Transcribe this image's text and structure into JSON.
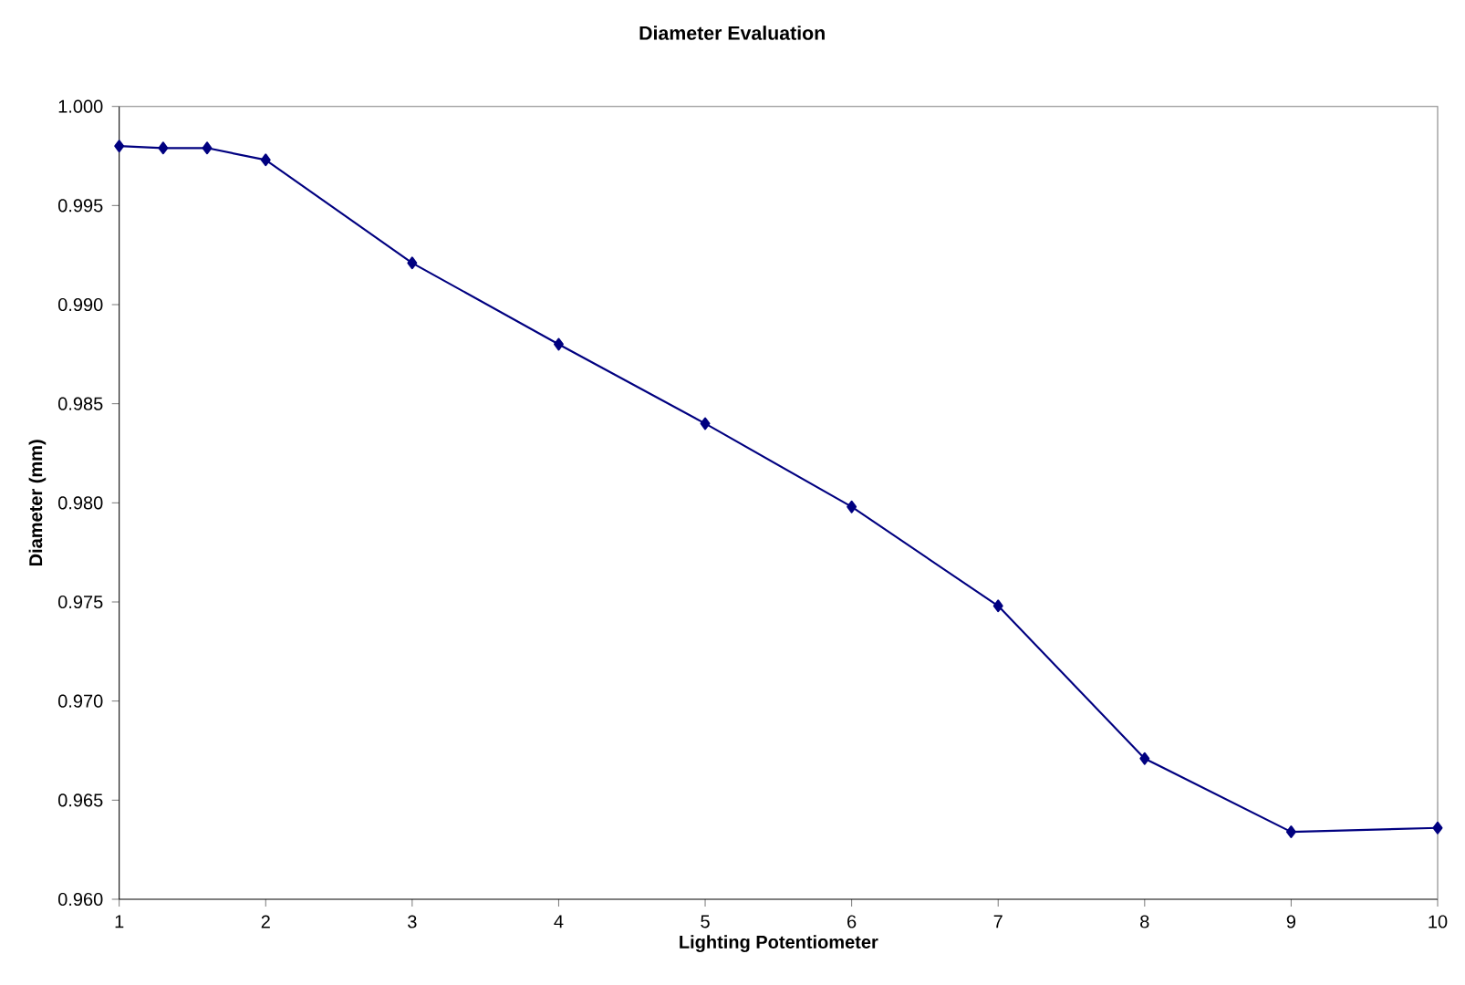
{
  "chart_data": {
    "type": "line",
    "title": "Diameter Evaluation",
    "xlabel": "Lighting Potentiometer",
    "ylabel": "Diameter (mm)",
    "x": [
      1,
      1.3,
      1.6,
      2,
      3,
      4,
      5,
      6,
      7,
      8,
      9,
      10
    ],
    "series": [
      {
        "color": "#000080",
        "values": [
          0.998,
          0.9979,
          0.9979,
          0.9973,
          0.9921,
          0.988,
          0.984,
          0.9798,
          0.9748,
          0.9671,
          0.9634,
          0.9636
        ]
      }
    ],
    "xlim": [
      1,
      10
    ],
    "xticks": [
      1,
      2,
      3,
      4,
      5,
      6,
      7,
      8,
      9,
      10
    ],
    "ylim": [
      0.96,
      1.0
    ],
    "yticks": [
      {
        "value": 0.96,
        "label": "0.960"
      },
      {
        "value": 0.965,
        "label": "0.965"
      },
      {
        "value": 0.97,
        "label": "0.970"
      },
      {
        "value": 0.975,
        "label": "0.975"
      },
      {
        "value": 0.98,
        "label": "0.980"
      },
      {
        "value": 0.985,
        "label": "0.985"
      },
      {
        "value": 0.99,
        "label": "0.990"
      },
      {
        "value": 0.995,
        "label": "0.995"
      },
      {
        "value": 1.0,
        "label": "1.000"
      }
    ],
    "marker": "diamond",
    "line_style": "solid",
    "grid": false
  }
}
